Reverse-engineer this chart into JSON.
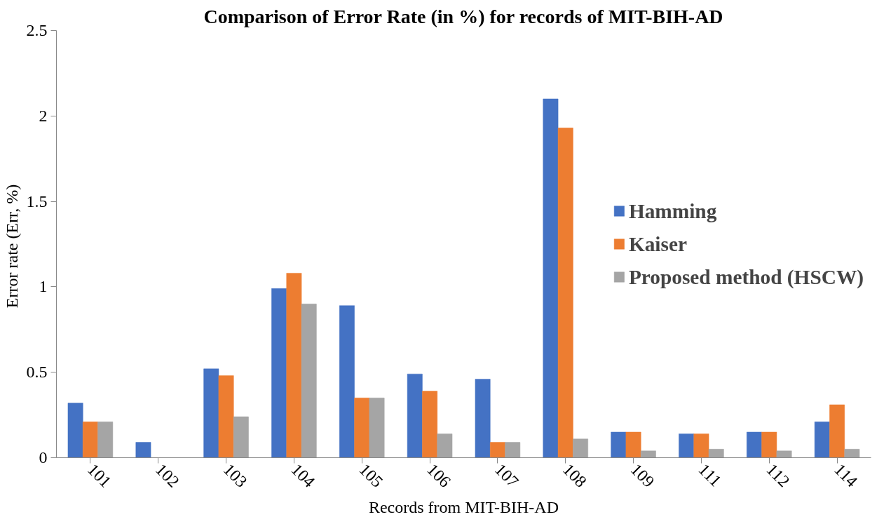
{
  "chart_data": {
    "type": "bar",
    "title": "Comparison of Error Rate (in %) for records of MIT-BIH-AD",
    "xlabel": "Records from MIT-BIH-AD",
    "ylabel": "Error rate  (Err, %)",
    "categories": [
      "101",
      "102",
      "103",
      "104",
      "105",
      "106",
      "107",
      "108",
      "109",
      "111",
      "112",
      "114"
    ],
    "series": [
      {
        "name": "Hamming",
        "color": "#4472c4",
        "values": [
          0.32,
          0.09,
          0.52,
          0.99,
          0.89,
          0.49,
          0.46,
          2.1,
          0.15,
          0.14,
          0.15,
          0.21
        ]
      },
      {
        "name": "Kaiser",
        "color": "#ed7d31",
        "values": [
          0.21,
          0,
          0.48,
          1.08,
          0.35,
          0.39,
          0.09,
          1.93,
          0.15,
          0.14,
          0.15,
          0.31
        ]
      },
      {
        "name": "Proposed method (HSCW)",
        "color": "#a5a5a5",
        "values": [
          0.21,
          0,
          0.24,
          0.9,
          0.35,
          0.14,
          0.09,
          0.11,
          0.04,
          0.05,
          0.04,
          0.05
        ]
      }
    ],
    "ylim": [
      0,
      2.5
    ],
    "yticks": [
      0,
      0.5,
      1,
      1.5,
      2,
      2.5
    ],
    "grid": false,
    "legend": "right"
  }
}
